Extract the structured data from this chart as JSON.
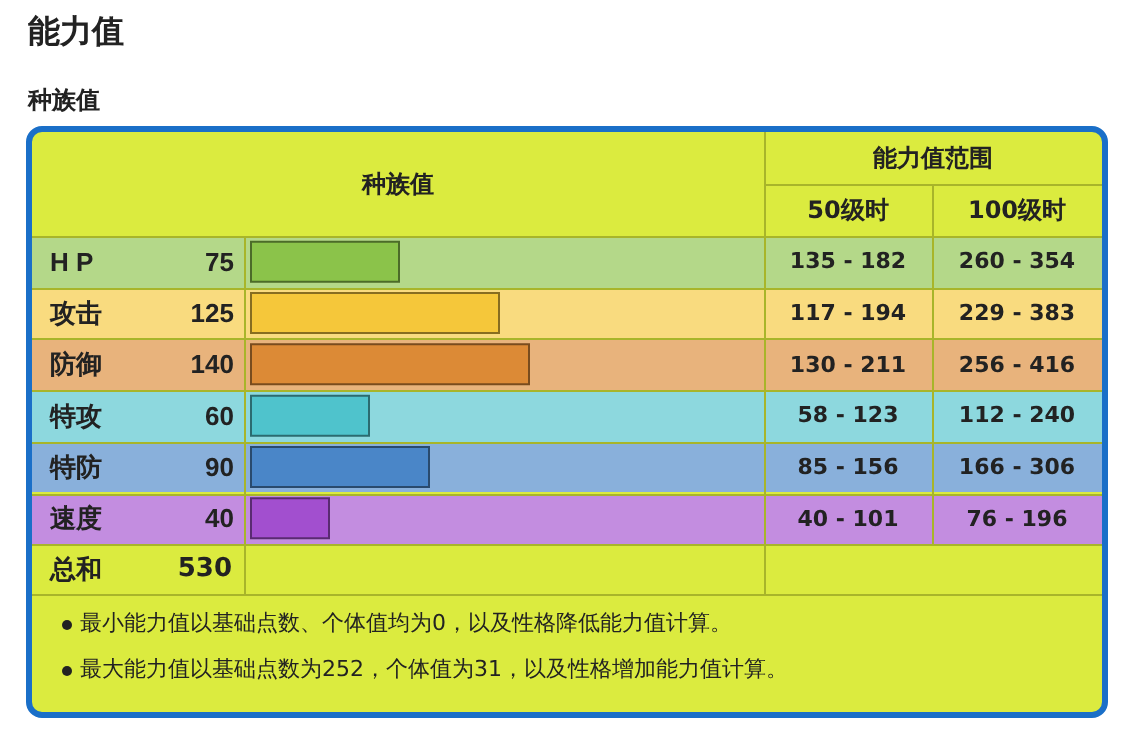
{
  "chart_data": {
    "type": "bar",
    "orientation": "horizontal",
    "title": "能力值",
    "subtitle": "种族值",
    "categories": [
      "H P",
      "攻击",
      "防御",
      "特攻",
      "特防",
      "速度"
    ],
    "values": [
      75,
      125,
      140,
      60,
      90,
      40
    ],
    "colors": [
      "#8bc34a",
      "#f5c73a",
      "#dc8a36",
      "#4fc3cc",
      "#4a86c8",
      "#a24fcf"
    ],
    "data_labels": true,
    "annotations": [
      "种族值",
      "能力值范围",
      "50级时",
      "100级时",
      "135 - 182",
      "260 - 354",
      "117 - 194",
      "229 - 383",
      "130 - 211",
      "256 - 416",
      "58 - 123",
      "112 - 240",
      "85 - 156",
      "166 - 306",
      "40 - 101",
      "76 - 196",
      "总和",
      "530",
      "最小能力值以基础点数、个体值均为0，以及性格降低能力值计算。",
      "最大能力值以基础点数为252，个体值为31，以及性格增加能力值计算。"
    ]
  }
}
